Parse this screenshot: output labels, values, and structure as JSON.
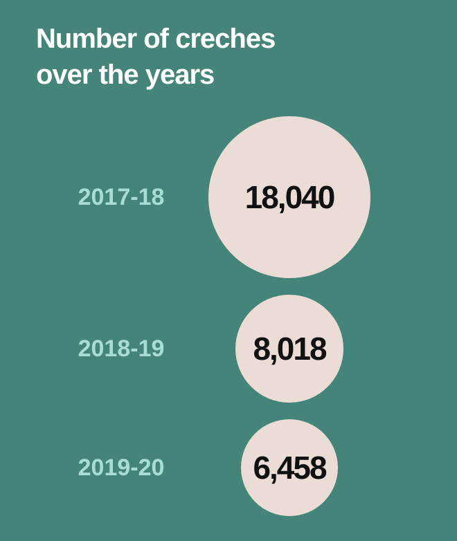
{
  "chart_data": {
    "type": "bubble",
    "title": "Number of creches over the years",
    "categories": [
      "2017-18",
      "2018-19",
      "2019-20"
    ],
    "values": [
      18040,
      8018,
      6458
    ],
    "value_labels": [
      "18,040",
      "8,018",
      "6,458"
    ],
    "color": "#ecdcd6"
  }
}
